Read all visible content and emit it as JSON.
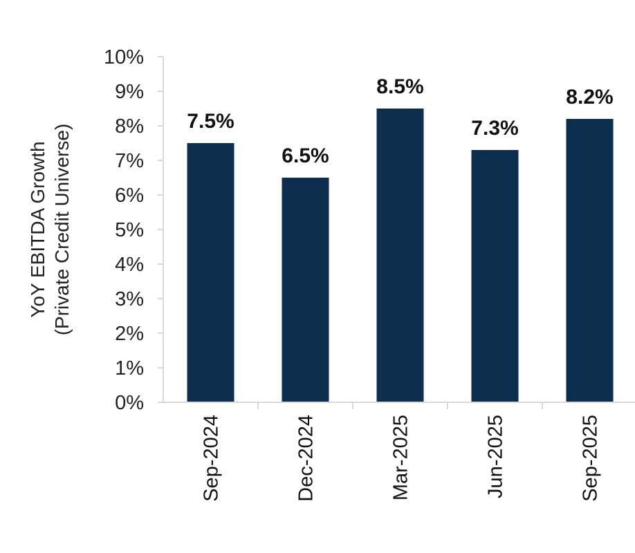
{
  "chart_data": {
    "type": "bar",
    "categories": [
      "Sep-2024",
      "Dec-2024",
      "Mar-2025",
      "Jun-2025",
      "Sep-2025"
    ],
    "values": [
      7.5,
      6.5,
      8.5,
      7.3,
      8.2
    ],
    "data_labels": [
      "7.5%",
      "6.5%",
      "8.5%",
      "7.3%",
      "8.2%"
    ],
    "title": "",
    "xlabel": "",
    "ylabel_lines": [
      "YoY EBITDA Growth",
      "(Private Credit Universe)"
    ],
    "ylim": [
      0,
      10
    ],
    "y_ticks": [
      0,
      1,
      2,
      3,
      4,
      5,
      6,
      7,
      8,
      9,
      10
    ],
    "y_tick_labels": [
      "0%",
      "1%",
      "2%",
      "3%",
      "4%",
      "5%",
      "6%",
      "7%",
      "8%",
      "9%",
      "10%"
    ],
    "grid": false,
    "legend": "none",
    "bar_color": "#0d2e4f",
    "axis_color": "#d9d9d9"
  }
}
